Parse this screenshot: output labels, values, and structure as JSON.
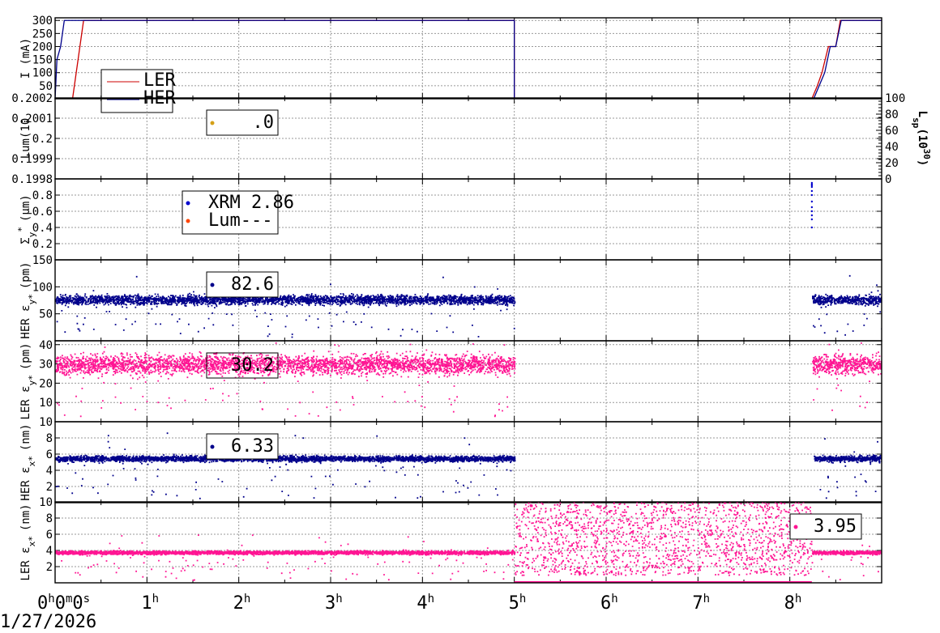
{
  "date_label": "1/27/2026",
  "x_axis": {
    "ticks": [
      {
        "base": "0",
        "sup": "h",
        "extra": "0",
        "sup2": "m",
        "extra2": "0",
        "sup3": "s"
      },
      {
        "base": "1",
        "sup": "h"
      },
      {
        "base": "2",
        "sup": "h"
      },
      {
        "base": "3",
        "sup": "h"
      },
      {
        "base": "4",
        "sup": "h"
      },
      {
        "base": "5",
        "sup": "h"
      },
      {
        "base": "6",
        "sup": "h"
      },
      {
        "base": "7",
        "sup": "h"
      },
      {
        "base": "8",
        "sup": "h"
      }
    ],
    "xlim_hours": [
      0,
      9
    ]
  },
  "colors": {
    "ler": "#cc0000",
    "her": "#00008b",
    "ler_emit": "#ff1493",
    "her_emit": "#00008b",
    "lum": "#ff4500",
    "lum_point": "#d4a017",
    "xrm": "#0000cd",
    "grid": "#999999"
  },
  "chart_data": [
    {
      "id": "current",
      "type": "line",
      "ylabel": "I (mA)",
      "ylim": [
        0,
        310
      ],
      "yticks": [
        "300",
        "250",
        "200",
        "150",
        "100",
        "50"
      ],
      "legend": [
        "LER",
        "HER"
      ],
      "series": [
        {
          "name": "LER",
          "x": [
            0,
            0.13,
            0.19,
            0.31,
            5.0,
            5.0,
            8.24,
            8.3,
            8.35,
            8.42,
            8.5,
            8.55,
            8.64,
            9.0
          ],
          "y": [
            0,
            0,
            0,
            300,
            300,
            0,
            0,
            50,
            100,
            200,
            200,
            300,
            300,
            300
          ]
        },
        {
          "name": "HER",
          "x": [
            0,
            0.02,
            0.06,
            0.1,
            0.2,
            5.0,
            5.0,
            8.26,
            8.32,
            8.38,
            8.44,
            8.5,
            8.56,
            8.62,
            9.0
          ],
          "y": [
            0,
            150,
            200,
            300,
            300,
            300,
            0,
            0,
            50,
            100,
            200,
            200,
            300,
            300,
            300
          ]
        }
      ]
    },
    {
      "id": "luminosity",
      "type": "scatter",
      "ylabel": "Lum(10",
      "ylim": [
        0.1998,
        0.2002
      ],
      "yticks": [
        "0.2002",
        "0.2001",
        "0.2",
        "0.1999",
        "0.1998"
      ],
      "right_ylabel": "L",
      "right_ylabel_sub": "sp",
      "right_ylabel_rest": "(10",
      "right_ylabel_sup": "30",
      "right_ylabel_end": ")",
      "right_ylim": [
        0,
        100
      ],
      "right_yticks": [
        "100",
        "80",
        "60",
        "40",
        "20",
        "0"
      ],
      "legend_value": ".0"
    },
    {
      "id": "sigma_y",
      "type": "scatter",
      "ylabel": "Σ",
      "ylabel_sub": "y",
      "ylabel_sup": "*",
      "ylabel_unit": "(µm)",
      "ylim": [
        0,
        1.0
      ],
      "yticks": [
        "0.8",
        "0.6",
        "0.4",
        "0.2"
      ],
      "legend": [
        {
          "name": "XRM",
          "value": "2.86"
        },
        {
          "name": "Lum",
          "value": "---"
        }
      ],
      "series": [
        {
          "name": "XRM",
          "x": [
            8.24,
            8.24,
            8.24,
            8.24,
            8.24,
            8.24,
            8.24,
            8.24,
            8.24,
            8.24,
            8.24,
            8.24
          ],
          "y": [
            0.95,
            0.93,
            0.92,
            0.9,
            0.85,
            0.8,
            0.72,
            0.65,
            0.6,
            0.55,
            0.5,
            0.4
          ]
        }
      ]
    },
    {
      "id": "her_emit_y",
      "type": "scatter",
      "ylabel": "HER ε",
      "ylabel_sub": "y*",
      "ylabel_unit": "(pm)",
      "ylim": [
        0,
        150
      ],
      "yticks": [
        "150",
        "100",
        "50"
      ],
      "legend_value": "82.6",
      "series": [
        {
          "name": "HER",
          "segments": [
            [
              0,
              5.0
            ],
            [
              8.24,
              9.0
            ]
          ],
          "mean": 77,
          "spread": 6
        }
      ]
    },
    {
      "id": "ler_emit_y",
      "type": "scatter",
      "ylabel": "LER ε",
      "ylabel_sub": "y*",
      "ylabel_unit": "(pm)",
      "ylim": [
        0,
        42
      ],
      "yticks": [
        "40",
        "30",
        "20",
        "10"
      ],
      "legend_value": "30.2",
      "series": [
        {
          "name": "LER",
          "segments": [
            [
              0,
              5.0
            ],
            [
              8.24,
              9.0
            ]
          ],
          "mean": 30,
          "spread": 3.5
        }
      ]
    },
    {
      "id": "her_emit_x",
      "type": "scatter",
      "ylabel": "HER ε",
      "ylabel_sub": "x*",
      "ylabel_unit": "(nm)",
      "ylim": [
        0,
        10
      ],
      "yticks": [
        "10",
        "8",
        "6",
        "4",
        "2"
      ],
      "legend_value": "6.33",
      "series": [
        {
          "name": "HER",
          "segments": [
            [
              0,
              5.0
            ],
            [
              8.26,
              9.0
            ]
          ],
          "mean": 5.5,
          "spread": 0.25
        }
      ]
    },
    {
      "id": "ler_emit_x",
      "type": "scatter",
      "ylabel": "LER ε",
      "ylabel_sub": "x*",
      "ylabel_unit": "(nm)",
      "ylim": [
        0,
        10
      ],
      "yticks": [
        "10",
        "8",
        "6",
        "4",
        "2"
      ],
      "legend_value": "3.95",
      "series": [
        {
          "name": "LER",
          "segments": [
            [
              0,
              5.0
            ],
            [
              8.24,
              9.0
            ]
          ],
          "mean": 3.8,
          "spread": 0.15,
          "scatter_segment": [
            5.0,
            8.24
          ]
        }
      ]
    }
  ]
}
